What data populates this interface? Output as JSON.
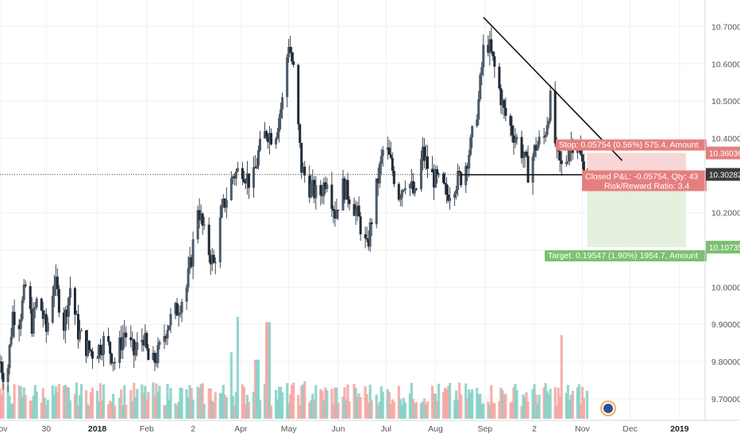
{
  "chart_data": {
    "type": "candlestick",
    "colors": {
      "up": "#4b5a68",
      "down": "#1f2a36",
      "vol_up": "#7fcfc4",
      "vol_down": "#f4a3a0",
      "stop_zone": "#f7d1d1",
      "target_zone": "#e2f0da",
      "stop_label": "#e57f7f",
      "target_label": "#7cc071",
      "price_tag": "#3a3a3a",
      "grid": "#eef0f3",
      "axis_text": "#555555"
    },
    "y_axis": {
      "labels": [
        "10.70000",
        "10.60000",
        "10.50000",
        "10.40000",
        "10.30000",
        "10.20000",
        "10.10000",
        "10.00000",
        "9.90000",
        "9.80000",
        "9.70000"
      ],
      "values": [
        10.7,
        10.6,
        10.5,
        10.4,
        10.3,
        10.2,
        10.1,
        10.0,
        9.9,
        9.8,
        9.7
      ],
      "range": [
        9.672,
        10.75
      ]
    },
    "x_axis": {
      "labels": [
        "Nov",
        "30",
        "2018",
        "Feb",
        "2",
        "Apr",
        "May",
        "Jun",
        "Jul",
        "Aug",
        "Sep",
        "2",
        "Nov",
        "Dec",
        "2019"
      ],
      "bold": [
        "2018",
        "2019"
      ],
      "range": [
        "2017-11-01",
        "2019-01-08"
      ]
    },
    "price_path": [
      [
        "2017-11-01",
        9.8
      ],
      [
        "2017-11-05",
        9.74
      ],
      [
        "2017-11-09",
        9.93
      ],
      [
        "2017-11-13",
        9.91
      ],
      [
        "2017-11-17",
        10.0
      ],
      [
        "2017-11-21",
        9.9
      ],
      [
        "2017-11-25",
        9.98
      ],
      [
        "2017-11-30",
        9.88
      ],
      [
        "2017-12-05",
        10.02
      ],
      [
        "2017-12-11",
        9.9
      ],
      [
        "2017-12-15",
        10.0
      ],
      [
        "2017-12-20",
        9.88
      ],
      [
        "2017-12-25",
        9.84
      ],
      [
        "2017-12-30",
        9.82
      ],
      [
        "2018-01-06",
        9.86
      ],
      [
        "2018-01-12",
        9.8
      ],
      [
        "2018-01-18",
        9.88
      ],
      [
        "2018-01-24",
        9.82
      ],
      [
        "2018-01-30",
        9.87
      ],
      [
        "2018-02-03",
        9.78
      ],
      [
        "2018-02-08",
        9.82
      ],
      [
        "2018-02-14",
        9.9
      ],
      [
        "2018-02-20",
        9.94
      ],
      [
        "2018-02-26",
        10.0
      ],
      [
        "2018-03-01",
        10.08
      ],
      [
        "2018-03-05",
        10.22
      ],
      [
        "2018-03-10",
        10.12
      ],
      [
        "2018-03-15",
        10.06
      ],
      [
        "2018-03-20",
        10.2
      ],
      [
        "2018-03-27",
        10.3
      ],
      [
        "2018-04-02",
        10.32
      ],
      [
        "2018-04-08",
        10.27
      ],
      [
        "2018-04-12",
        10.36
      ],
      [
        "2018-04-17",
        10.42
      ],
      [
        "2018-04-22",
        10.4
      ],
      [
        "2018-04-27",
        10.5
      ],
      [
        "2018-05-01",
        10.66
      ],
      [
        "2018-05-04",
        10.58
      ],
      [
        "2018-05-09",
        10.32
      ],
      [
        "2018-05-14",
        10.27
      ],
      [
        "2018-05-20",
        10.24
      ],
      [
        "2018-05-25",
        10.3
      ],
      [
        "2018-05-30",
        10.2
      ],
      [
        "2018-06-04",
        10.27
      ],
      [
        "2018-06-09",
        10.24
      ],
      [
        "2018-06-14",
        10.18
      ],
      [
        "2018-06-19",
        10.1
      ],
      [
        "2018-06-24",
        10.24
      ],
      [
        "2018-06-30",
        10.39
      ],
      [
        "2018-07-04",
        10.33
      ],
      [
        "2018-07-09",
        10.25
      ],
      [
        "2018-07-14",
        10.3
      ],
      [
        "2018-07-19",
        10.24
      ],
      [
        "2018-07-24",
        10.36
      ],
      [
        "2018-07-29",
        10.3
      ],
      [
        "2018-08-03",
        10.28
      ],
      [
        "2018-08-08",
        10.25
      ],
      [
        "2018-08-13",
        10.28
      ],
      [
        "2018-08-18",
        10.3
      ],
      [
        "2018-08-23",
        10.38
      ],
      [
        "2018-08-28",
        10.5
      ],
      [
        "2018-09-01",
        10.68
      ],
      [
        "2018-09-04",
        10.64
      ],
      [
        "2018-09-08",
        10.57
      ],
      [
        "2018-09-13",
        10.47
      ],
      [
        "2018-09-18",
        10.42
      ],
      [
        "2018-09-23",
        10.38
      ],
      [
        "2018-09-28",
        10.31
      ],
      [
        "2018-10-03",
        10.38
      ],
      [
        "2018-10-08",
        10.4
      ],
      [
        "2018-10-12",
        10.5
      ],
      [
        "2018-10-16",
        10.35
      ],
      [
        "2018-10-20",
        10.31
      ],
      [
        "2018-10-24",
        10.38
      ],
      [
        "2018-10-28",
        10.4
      ],
      [
        "2018-11-01",
        10.33
      ],
      [
        "2018-11-04",
        10.31
      ]
    ],
    "trendlines": [
      {
        "name": "descending-trendline",
        "from": [
          "2018-08-31",
          10.725
        ],
        "to": [
          "2018-11-26",
          10.34
        ]
      },
      {
        "name": "support-line",
        "from": [
          "2018-08-17",
          10.302
        ],
        "to": [
          "2018-11-07",
          10.302
        ]
      }
    ],
    "horizontal_crosshair": 10.3028,
    "volume_spikes": [
      [
        "2018-03-31",
        0.95
      ],
      [
        "2018-04-18",
        0.9
      ],
      [
        "2018-03-25",
        0.62
      ],
      [
        "2018-10-20",
        0.78
      ],
      [
        "2018-04-11",
        0.55
      ],
      [
        "2018-05-12",
        0.35
      ]
    ],
    "position": {
      "start": "2018-11-04",
      "end": "2019-01-05",
      "entry": 10.3028,
      "stop": 10.36036,
      "target": 10.10735,
      "stop_label": "Stop: 0.05754 (0.56%) 575.4, Amount",
      "pnl_label": "Closed P&L: -0.05754, Qty: 43",
      "risk_reward_label": "Risk/Reward Ratio: 3.4",
      "target_label": "Target: 0.19547 (1.90%) 1954.7, Amount"
    },
    "price_tags": {
      "stop": "10.36036",
      "entry": "10.30282",
      "target": "10.10735"
    }
  }
}
